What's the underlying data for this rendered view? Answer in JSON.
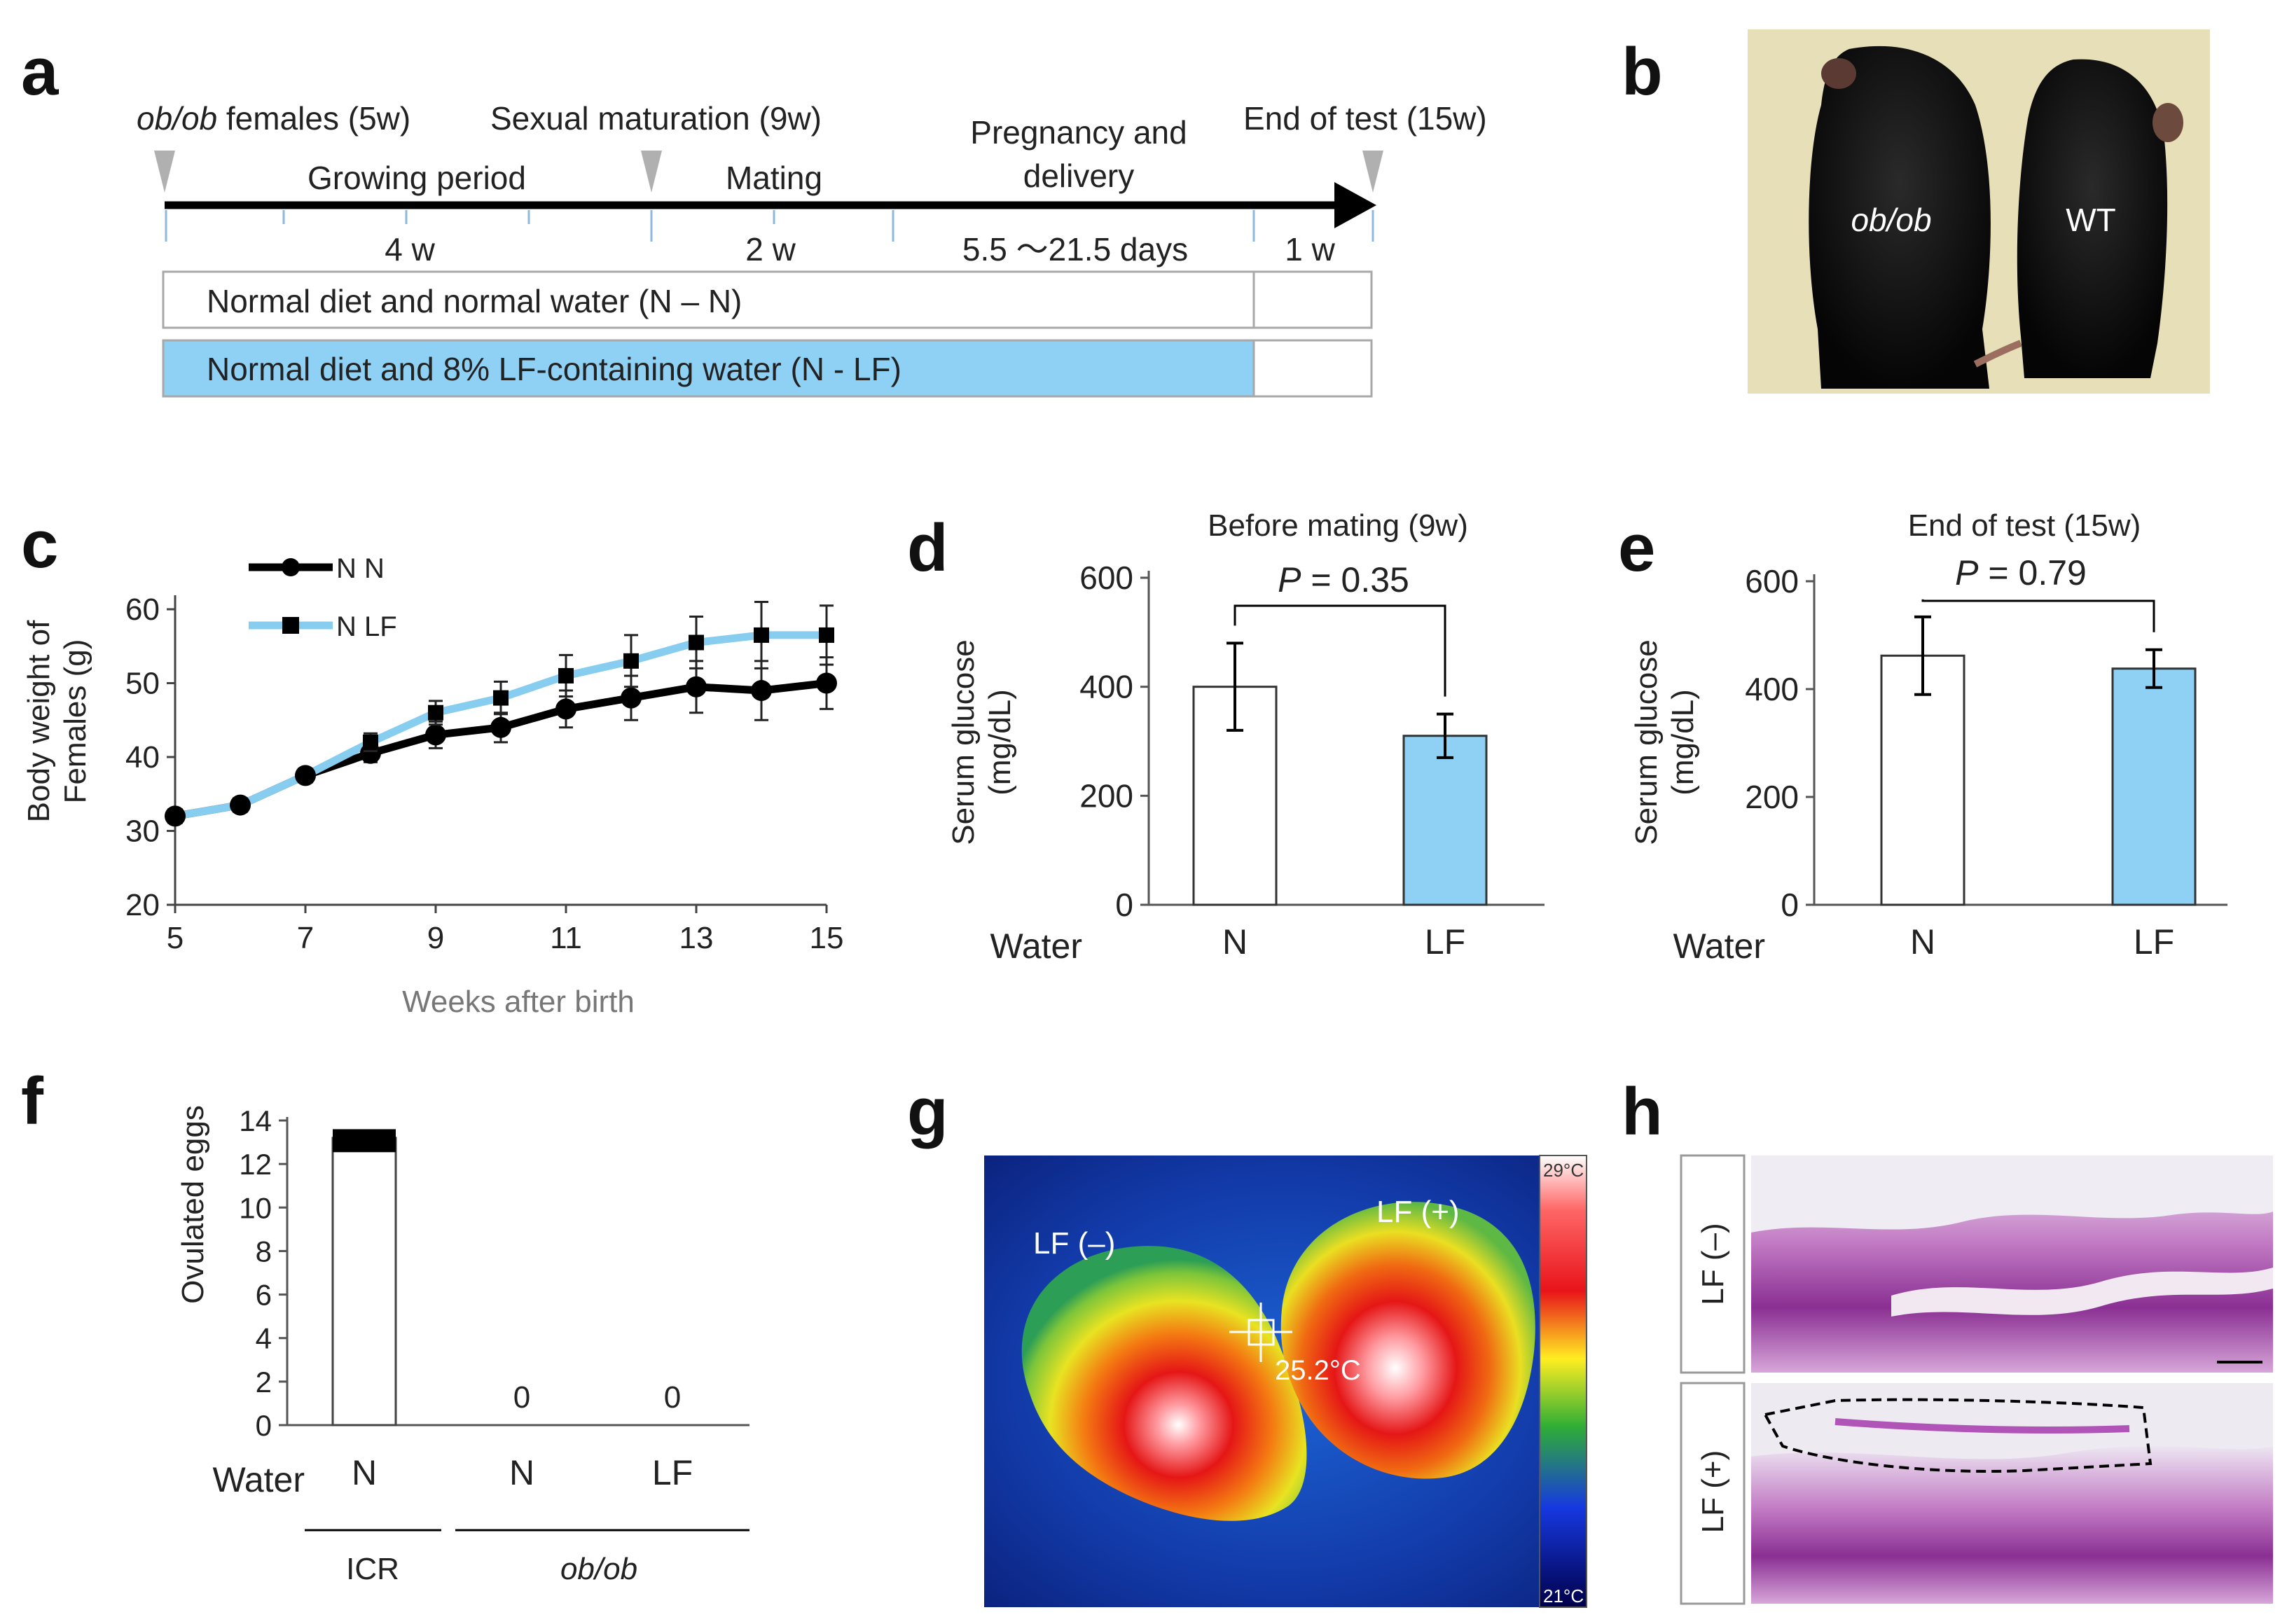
{
  "panel_letters": {
    "a": "a",
    "b": "b",
    "c": "c",
    "d": "d",
    "e": "e",
    "f": "f",
    "g": "g",
    "h": "h"
  },
  "timeline": {
    "events": [
      {
        "italic": "ob/ob",
        "rest": " females (5w)"
      },
      {
        "text": "Sexual maturation (9w)"
      },
      {
        "text": "End of test (15w)"
      }
    ],
    "periods": {
      "growing": "Growing period",
      "mating": "Mating",
      "pregnancy_line1": "Pregnancy and",
      "pregnancy_line2": "delivery"
    },
    "durations": [
      "4 w",
      "2 w",
      "5.5 ～21.5 days",
      "1 w"
    ],
    "groups": [
      {
        "label": "Normal diet and normal water (N – N)",
        "fill": "#ffffff"
      },
      {
        "label": "Normal diet and 8% LF-containing water (N - LF)",
        "fill": "#8fd0f5"
      }
    ]
  },
  "photo_b": {
    "labels": {
      "left": "ob/ob",
      "right": "WT"
    },
    "bg": "#e6dfb8"
  },
  "thermal_g": {
    "labels": {
      "left": "LF (–)",
      "right": "LF (+)",
      "temp": "25.2°C"
    },
    "scale": {
      "top": "29°C",
      "bottom": "21°C"
    }
  },
  "histology_h": {
    "labels": [
      "LF (–)",
      "LF (+)"
    ]
  },
  "chart_data": [
    {
      "id": "c",
      "type": "line",
      "xlabel": "Weeks after birth",
      "ylabel_line1": "Body weight of",
      "ylabel_line2": "Females (g)",
      "xlim": [
        5,
        15
      ],
      "ylim": [
        20,
        60
      ],
      "xticks": [
        5,
        7,
        9,
        11,
        13,
        15
      ],
      "yticks": [
        20,
        30,
        40,
        50,
        60
      ],
      "x": [
        5,
        6,
        7,
        8,
        9,
        10,
        11,
        12,
        13,
        14,
        15
      ],
      "series": [
        {
          "name": "N N",
          "color": "#000000",
          "marker": "circle",
          "values": [
            32,
            33.5,
            37.5,
            40.5,
            43,
            44,
            46.5,
            48,
            49.5,
            49,
            50
          ],
          "errors": [
            0.5,
            0.6,
            0.8,
            1.2,
            1.8,
            2,
            2.5,
            3,
            3.5,
            4,
            3.5
          ]
        },
        {
          "name": "N LF",
          "color": "#87cdf0",
          "marker": "square",
          "values": [
            32,
            33.5,
            37.5,
            42,
            46,
            48,
            51,
            53,
            55.5,
            56.5,
            56.5
          ],
          "errors": [
            0.5,
            0.6,
            0.8,
            1.2,
            1.6,
            2.2,
            2.8,
            3.5,
            3.5,
            4.5,
            4
          ]
        }
      ]
    },
    {
      "id": "d",
      "type": "bar",
      "title": "Before mating (9w)",
      "ylabel_line1": "Serum glucose",
      "ylabel_line2": "(mg/dL)",
      "axis_label": "Water",
      "categories": [
        "N",
        "LF"
      ],
      "values": [
        400,
        310
      ],
      "errors": [
        80,
        40
      ],
      "colors": [
        "#ffffff",
        "#8fd0f5"
      ],
      "ylim": [
        0,
        600
      ],
      "yticks": [
        0,
        200,
        400,
        600
      ],
      "p_label": "P",
      "p_text": " = 0.35"
    },
    {
      "id": "e",
      "type": "bar",
      "title": "End of test (15w)",
      "ylabel_line1": "Serum glucose",
      "ylabel_line2": "(mg/dL)",
      "axis_label": "Water",
      "categories": [
        "N",
        "LF"
      ],
      "values": [
        462,
        438
      ],
      "errors": [
        72,
        35
      ],
      "colors": [
        "#ffffff",
        "#8fd0f5"
      ],
      "ylim": [
        0,
        600
      ],
      "yticks": [
        0,
        200,
        400,
        600
      ],
      "p_label": "P",
      "p_text": " = 0.79"
    },
    {
      "id": "f",
      "type": "bar",
      "ylabel": "Ovulated eggs",
      "axis_label": "Water",
      "categories": [
        "N",
        "N",
        "LF"
      ],
      "values": [
        13.2,
        0,
        0
      ],
      "errors": [
        0.4,
        0,
        0
      ],
      "value_labels": [
        "",
        "0",
        "0"
      ],
      "groups": [
        "ICR",
        "ob/ob"
      ],
      "ylim": [
        0,
        14
      ],
      "yticks": [
        0,
        2,
        4,
        6,
        8,
        10,
        12,
        14
      ]
    }
  ]
}
